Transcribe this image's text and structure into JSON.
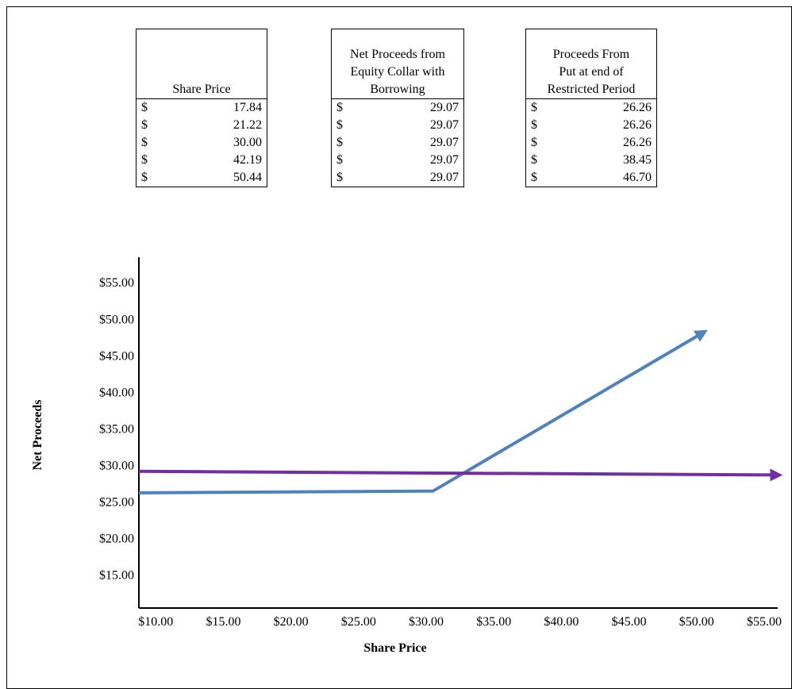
{
  "tables": [
    {
      "header_lines": [
        "Share Price"
      ],
      "rows": [
        {
          "cur": "$",
          "val": "17.84"
        },
        {
          "cur": "$",
          "val": "21.22"
        },
        {
          "cur": "$",
          "val": "30.00"
        },
        {
          "cur": "$",
          "val": "42.19"
        },
        {
          "cur": "$",
          "val": "50.44"
        }
      ]
    },
    {
      "header_lines": [
        "Net Proceeds from",
        "Equity Collar with",
        "Borrowing"
      ],
      "rows": [
        {
          "cur": "$",
          "val": "29.07"
        },
        {
          "cur": "$",
          "val": "29.07"
        },
        {
          "cur": "$",
          "val": "29.07"
        },
        {
          "cur": "$",
          "val": "29.07"
        },
        {
          "cur": "$",
          "val": "29.07"
        }
      ]
    },
    {
      "header_lines": [
        "Proceeds From",
        "Put at end of",
        "Restricted Period"
      ],
      "rows": [
        {
          "cur": "$",
          "val": "26.26"
        },
        {
          "cur": "$",
          "val": "26.26"
        },
        {
          "cur": "$",
          "val": "26.26"
        },
        {
          "cur": "$",
          "val": "38.45"
        },
        {
          "cur": "$",
          "val": "46.70"
        }
      ]
    }
  ],
  "chart_data": {
    "type": "line",
    "xlabel": "Share Price",
    "ylabel": "Net Proceeds",
    "xlim": [
      8.75,
      56
    ],
    "ylim": [
      10.5,
      58.5
    ],
    "x_ticks": [
      10,
      15,
      20,
      25,
      30,
      35,
      40,
      45,
      50,
      55
    ],
    "x_tick_labels": [
      "$10.00",
      "$15.00",
      "$20.00",
      "$25.00",
      "$30.00",
      "$35.00",
      "$40.00",
      "$45.00",
      "$50.00",
      "$55.00"
    ],
    "y_ticks": [
      15,
      20,
      25,
      30,
      35,
      40,
      45,
      50,
      55
    ],
    "y_tick_labels": [
      "$15.00",
      "$20.00",
      "$25.00",
      "$30.00",
      "$35.00",
      "$40.00",
      "$45.00",
      "$50.00",
      "$55.00"
    ],
    "grid": false,
    "series": [
      {
        "color": "#4f81bd",
        "x": [
          8.75,
          30.5,
          50.5
        ],
        "y": [
          26.26,
          26.5,
          48.2
        ]
      },
      {
        "color": "#7030a0",
        "x": [
          8.75,
          56
        ],
        "y": [
          29.2,
          28.7
        ]
      }
    ]
  }
}
